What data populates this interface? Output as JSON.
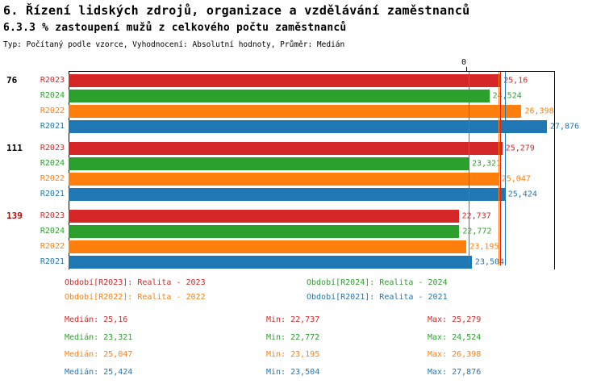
{
  "chart_data": {
    "type": "bar",
    "orientation": "horizontal",
    "title": "6. Řízení lidských zdrojů, organizace a vzdělávání zaměstnanců",
    "subtitle": "6.3.3 % zastoupení mužů z celkového počtu zaměstnanců",
    "meta": "Typ: Počítaný podle vzorce, Vyhodnocení: Absolutní hodnoty, Průměr: Medián",
    "xlim": [
      0,
      28.35
    ],
    "axis_zero_label": "0",
    "grid": false,
    "series_order": [
      "R2023",
      "R2024",
      "R2022",
      "R2021"
    ],
    "colors": {
      "R2023": "#d62728",
      "R2024": "#2ca02c",
      "R2022": "#ff7f0e",
      "R2021": "#1f77b4"
    },
    "groups": [
      {
        "label": "76",
        "label_color": "#000000",
        "bars": [
          {
            "series": "R2023",
            "value": 25.16,
            "value_label": "25,16"
          },
          {
            "series": "R2024",
            "value": 24.524,
            "value_label": "24,524"
          },
          {
            "series": "R2022",
            "value": 26.398,
            "value_label": "26,398"
          },
          {
            "series": "R2021",
            "value": 27.876,
            "value_label": "27,876"
          }
        ]
      },
      {
        "label": "111",
        "label_color": "#000000",
        "bars": [
          {
            "series": "R2023",
            "value": 25.279,
            "value_label": "25,279"
          },
          {
            "series": "R2024",
            "value": 23.321,
            "value_label": "23,321"
          },
          {
            "series": "R2022",
            "value": 25.047,
            "value_label": "25,047"
          },
          {
            "series": "R2021",
            "value": 25.424,
            "value_label": "25,424"
          }
        ]
      },
      {
        "label": "139",
        "label_color": "#cc0000",
        "bars": [
          {
            "series": "R2023",
            "value": 22.737,
            "value_label": "22,737"
          },
          {
            "series": "R2024",
            "value": 22.772,
            "value_label": "22,772"
          },
          {
            "series": "R2022",
            "value": 23.195,
            "value_label": "23,195"
          },
          {
            "series": "R2021",
            "value": 23.504,
            "value_label": "23,504"
          }
        ]
      }
    ],
    "median_lines": {
      "R2023": 25.16,
      "R2024": 23.321,
      "R2022": 25.047,
      "R2021": 25.424
    }
  },
  "legend": {
    "items": [
      {
        "series": "R2023",
        "text": "Období[R2023]: Realita - 2023"
      },
      {
        "series": "R2024",
        "text": "Období[R2024]: Realita - 2024"
      },
      {
        "series": "R2022",
        "text": "Období[R2022]: Realita - 2022"
      },
      {
        "series": "R2021",
        "text": "Období[R2021]: Realita - 2021"
      }
    ]
  },
  "stats": {
    "rows": [
      {
        "series": "R2023",
        "median": "Medián: 25,16",
        "min": "Min: 22,737",
        "max": "Max: 25,279"
      },
      {
        "series": "R2024",
        "median": "Medián: 23,321",
        "min": "Min: 22,772",
        "max": "Max: 24,524"
      },
      {
        "series": "R2022",
        "median": "Medián: 25,047",
        "min": "Min: 23,195",
        "max": "Max: 26,398"
      },
      {
        "series": "R2021",
        "median": "Medián: 25,424",
        "min": "Min: 23,504",
        "max": "Max: 27,876"
      }
    ]
  }
}
